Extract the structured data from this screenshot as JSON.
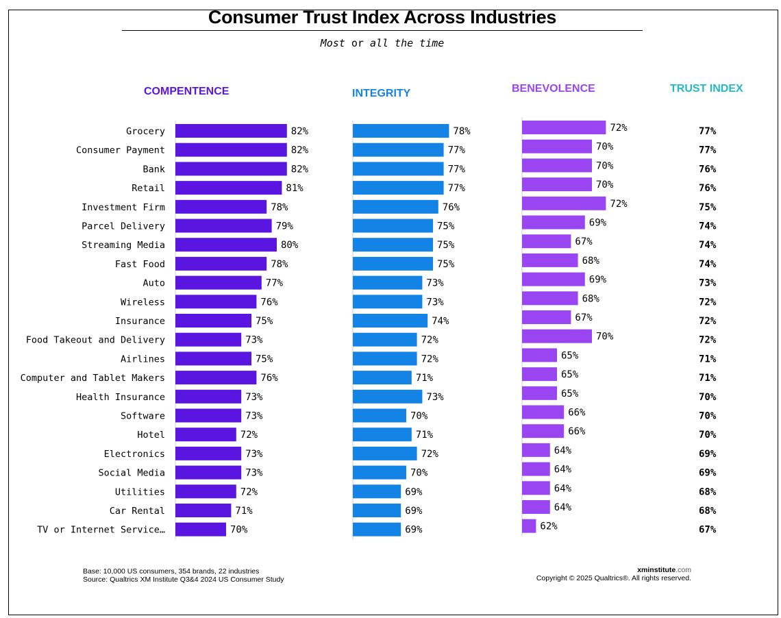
{
  "header": {
    "title": "Consumer Trust Index Across Industries",
    "subtitle_a": "Most",
    "subtitle_or": "or",
    "subtitle_b": "all the time"
  },
  "colors": {
    "competence": "#5a16e0",
    "integrity": "#1483e6",
    "benevolence": "#9a45f2",
    "trust_index": "#27b8c6"
  },
  "chart_data": {
    "type": "bar",
    "title": "Consumer Trust Index Across Industries",
    "orientation": "horizontal",
    "unit": "%",
    "categories": [
      "Grocery",
      "Consumer Payment",
      "Bank",
      "Retail",
      "Investment Firm",
      "Parcel Delivery",
      "Streaming Media",
      "Fast Food",
      "Auto",
      "Wireless",
      "Insurance",
      "Food Takeout and Delivery",
      "Airlines",
      "Computer and Tablet Makers",
      "Health Insurance",
      "Software",
      "Hotel",
      "Electronics",
      "Social Media",
      "Utilities",
      "Car Rental",
      "TV or Internet Service…"
    ],
    "series": [
      {
        "name": "COMPENTENCE",
        "values": [
          82,
          82,
          82,
          81,
          78,
          79,
          80,
          78,
          77,
          76,
          75,
          73,
          75,
          76,
          73,
          73,
          72,
          73,
          73,
          72,
          71,
          70
        ]
      },
      {
        "name": "INTEGRITY",
        "values": [
          78,
          77,
          77,
          77,
          76,
          75,
          75,
          75,
          73,
          73,
          74,
          72,
          72,
          71,
          73,
          70,
          71,
          72,
          70,
          69,
          69,
          69
        ]
      },
      {
        "name": "BENEVOLENCE",
        "values": [
          72,
          70,
          70,
          70,
          72,
          69,
          67,
          68,
          69,
          68,
          67,
          70,
          65,
          65,
          65,
          66,
          66,
          64,
          64,
          64,
          64,
          62
        ]
      },
      {
        "name": "TRUST INDEX",
        "values": [
          77,
          77,
          76,
          76,
          75,
          74,
          74,
          74,
          73,
          72,
          72,
          72,
          71,
          71,
          70,
          70,
          70,
          69,
          69,
          68,
          68,
          67
        ],
        "display": "text"
      }
    ]
  },
  "footer": {
    "base": "Base: 10,000 US consumers, 354 brands, 22 industries",
    "source": "Source: Qualtrics XM Institute Q3&4 2024 US Consumer Study",
    "brand": "xminstitute",
    "brand_domain": ".com",
    "copyright": "Copyright © 2025 Qualtrics®. All rights reserved."
  }
}
